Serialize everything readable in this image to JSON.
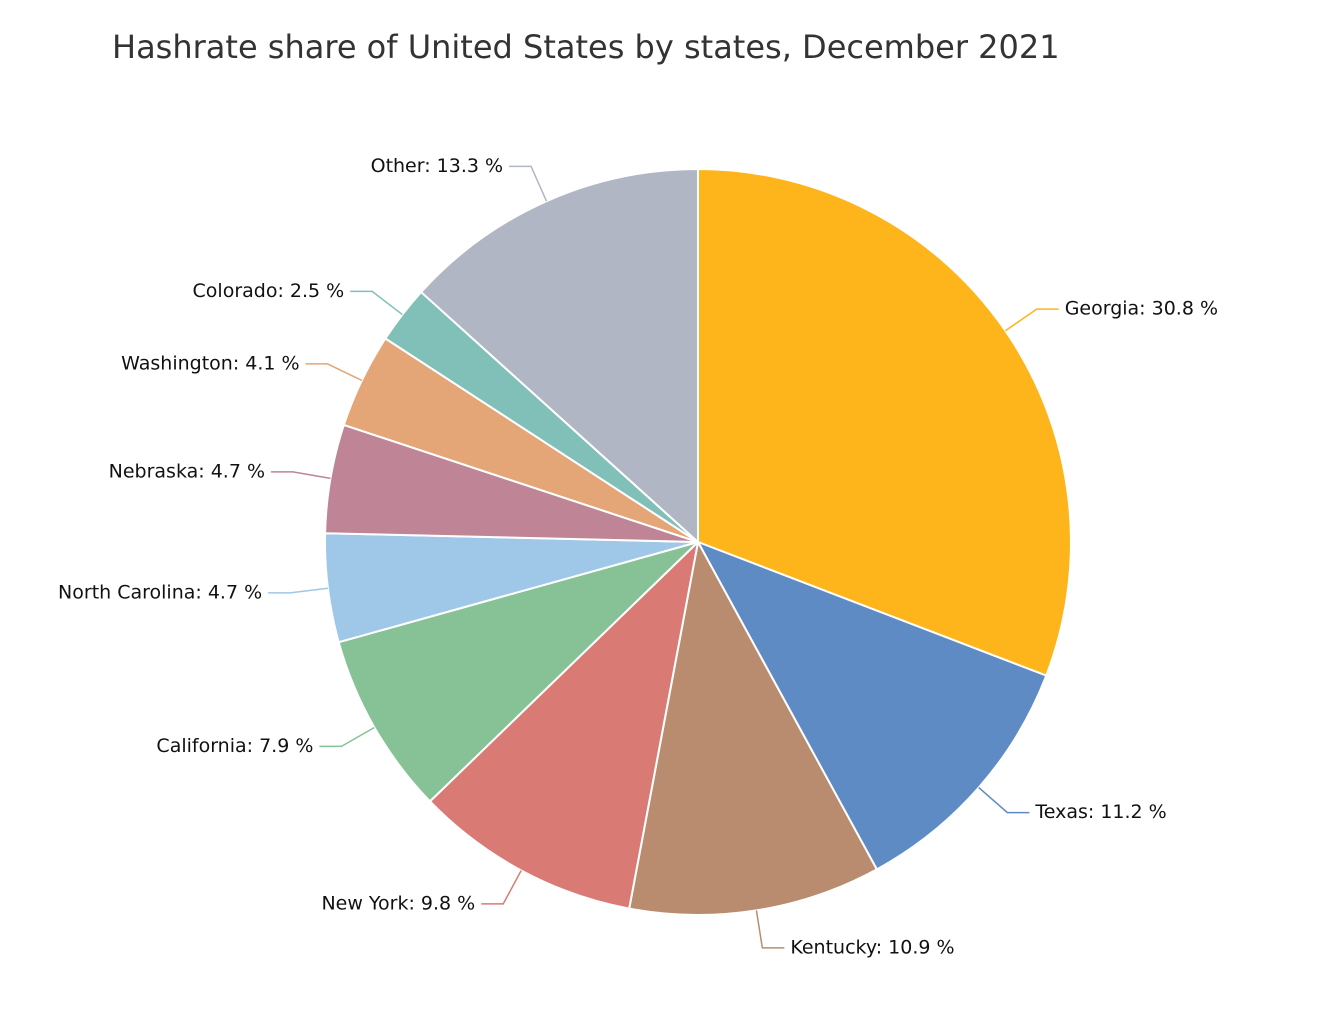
{
  "chart_data": {
    "type": "pie",
    "title": "Hashrate share of United States by states, December 2021",
    "unit": "%",
    "slices": [
      {
        "name": "Georgia",
        "value": 30.8,
        "color": "#FDB51B"
      },
      {
        "name": "Texas",
        "value": 11.2,
        "color": "#5E8BC4"
      },
      {
        "name": "Kentucky",
        "value": 10.9,
        "color": "#B98C70"
      },
      {
        "name": "New York",
        "value": 9.8,
        "color": "#D97A74"
      },
      {
        "name": "California",
        "value": 7.9,
        "color": "#86C295"
      },
      {
        "name": "North Carolina",
        "value": 4.7,
        "color": "#9FC8E8"
      },
      {
        "name": "Nebraska",
        "value": 4.7,
        "color": "#BF8596"
      },
      {
        "name": "Washington",
        "value": 4.1,
        "color": "#E4A577"
      },
      {
        "name": "Colorado",
        "value": 2.5,
        "color": "#80C0B8"
      },
      {
        "name": "Other",
        "value": 13.3,
        "color": "#B1B6C4"
      }
    ]
  }
}
